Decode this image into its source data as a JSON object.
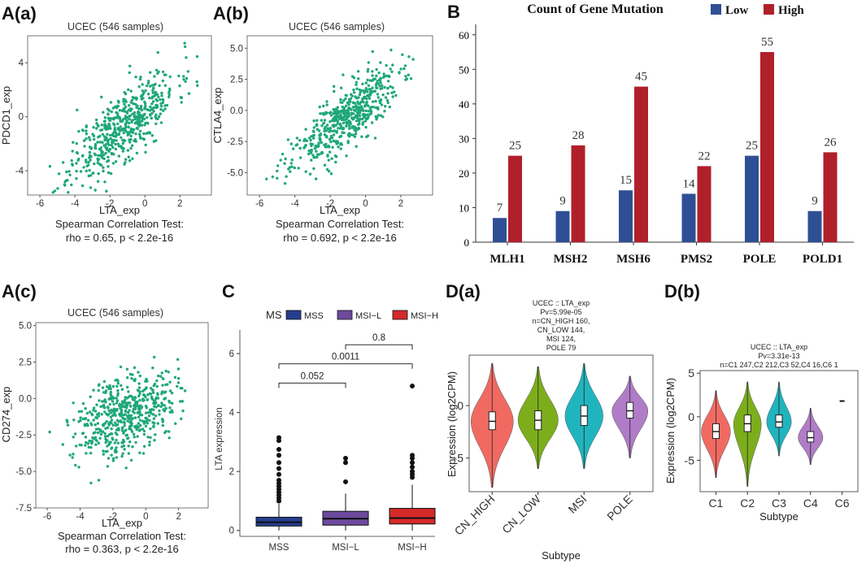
{
  "panels": {
    "a_a": "A(a)",
    "a_b": "A(b)",
    "a_c": "A(c)",
    "b": "B",
    "c": "C",
    "d_a": "D(a)",
    "d_b": "D(b)"
  },
  "chart_data": [
    {
      "id": "A(a)",
      "type": "scatter",
      "title": "UCEC (546 samples)",
      "xlabel": "LTA_exp",
      "ylabel": "PDCD1_exp",
      "xlim": [
        -6.7,
        3.8
      ],
      "ylim": [
        -5.8,
        6.0
      ],
      "xticks": [
        -6,
        -4,
        -2,
        0,
        2
      ],
      "yticks": [
        -4,
        0,
        4
      ],
      "slope": 1.0,
      "intercept": 0.6,
      "noise": 1.3,
      "n_points": 546,
      "stat_line1": "Spearman Correlation Test:",
      "stat_line2": "rho = 0.65, p < 2.2e-16",
      "color": "#1fa77a"
    },
    {
      "id": "A(b)",
      "type": "scatter",
      "title": "UCEC (546 samples)",
      "xlabel": "LTA_exp",
      "ylabel": "CTLA4_exp",
      "xlim": [
        -6.7,
        3.8
      ],
      "ylim": [
        -6.8,
        6.0
      ],
      "xticks": [
        -6,
        -4,
        -2,
        0,
        2
      ],
      "yticks": [
        -5.0,
        -2.5,
        0.0,
        2.5,
        5.0
      ],
      "slope": 1.05,
      "intercept": 0.5,
      "noise": 1.2,
      "n_points": 546,
      "stat_line1": "Spearman Correlation Test:",
      "stat_line2": "rho = 0.692, p < 2.2e-16",
      "color": "#1fa77a"
    },
    {
      "id": "A(c)",
      "type": "scatter",
      "title": "UCEC (546 samples)",
      "xlabel": "LTA_exp",
      "ylabel": "CD274_exp",
      "xlim": [
        -6.7,
        3.8
      ],
      "ylim": [
        -7.5,
        5.2
      ],
      "xticks": [
        -6,
        -4,
        -2,
        0,
        2
      ],
      "yticks": [
        -7.5,
        -5.0,
        -2.5,
        0.0,
        2.5,
        5.0
      ],
      "slope": 0.4,
      "intercept": -0.5,
      "noise": 1.35,
      "n_points": 546,
      "stat_line1": "Spearman Correlation Test:",
      "stat_line2": "rho = 0.363, p < 2.2e-16",
      "color": "#1fa77a"
    },
    {
      "id": "B",
      "type": "bar",
      "title": "Count of Gene Mutation",
      "categories": [
        "MLH1",
        "MSH2",
        "MSH6",
        "PMS2",
        "POLE",
        "POLD1"
      ],
      "series": [
        {
          "name": "Low",
          "values": [
            7,
            9,
            15,
            14,
            25,
            9
          ],
          "color": "#2f4f94"
        },
        {
          "name": "High",
          "values": [
            25,
            28,
            45,
            22,
            55,
            26
          ],
          "color": "#b0202a"
        }
      ],
      "ylim": [
        0,
        63
      ],
      "yticks": [
        0,
        10,
        20,
        30,
        40,
        50,
        60
      ],
      "legend": "top-right"
    },
    {
      "id": "C",
      "type": "box",
      "legend_title": "MS",
      "ylabel": "LTA expression",
      "xlabel": "",
      "categories": [
        "MSS",
        "MSI−L",
        "MSI−H"
      ],
      "colors": [
        "#243e8f",
        "#6d4a9e",
        "#d42a2a"
      ],
      "boxes": [
        {
          "q1": 0.15,
          "median": 0.28,
          "q3": 0.45,
          "whisker_low": 0.0,
          "whisker_high": 0.9,
          "outliers": [
            1.0,
            1.1,
            1.2,
            1.3,
            1.4,
            1.5,
            1.6,
            1.7,
            1.9,
            2.1,
            2.3,
            2.55,
            2.75,
            3.05,
            3.15
          ]
        },
        {
          "q1": 0.18,
          "median": 0.4,
          "q3": 0.65,
          "whisker_low": 0.0,
          "whisker_high": 1.25,
          "outliers": [
            1.65,
            2.3,
            2.45
          ]
        },
        {
          "q1": 0.22,
          "median": 0.42,
          "q3": 0.75,
          "whisker_low": 0.0,
          "whisker_high": 1.55,
          "outliers": [
            1.8,
            1.9,
            2.0,
            2.15,
            2.3,
            2.45,
            2.55,
            4.9
          ]
        }
      ],
      "ylim": [
        -0.2,
        6.8
      ],
      "yticks": [
        0,
        2,
        4,
        6
      ],
      "comparisons": [
        {
          "from": 0,
          "to": 1,
          "y": 5.0,
          "label": "0.052"
        },
        {
          "from": 0,
          "to": 2,
          "y": 5.65,
          "label": "0.0011"
        },
        {
          "from": 1,
          "to": 2,
          "y": 6.3,
          "label": "0.8"
        }
      ]
    },
    {
      "id": "D(a)",
      "type": "violin",
      "annotation": [
        "UCEC :: LTA_exp",
        "Pv=5.99e-05",
        "n=CN_HIGH 160,",
        "CN_LOW 144,",
        "MSI 124,",
        "POLE 79"
      ],
      "xlabel": "Subtype",
      "ylabel": "Expression (log2CPM)",
      "categories": [
        "CN_HIGH",
        "CN_LOW",
        "MSI",
        "POLE"
      ],
      "colors": [
        "#f06a62",
        "#7cae1c",
        "#20b5be",
        "#b07cc7"
      ],
      "violins": [
        {
          "center": -1.5,
          "lo": -7.8,
          "hi": 4.0,
          "width": 1.0,
          "q1": -2.3,
          "q3": -0.6,
          "median": -1.5
        },
        {
          "center": -1.4,
          "lo": -6.0,
          "hi": 3.7,
          "width": 0.95,
          "q1": -2.3,
          "q3": -0.5,
          "median": -1.4
        },
        {
          "center": -1.0,
          "lo": -6.0,
          "hi": 4.0,
          "width": 0.9,
          "q1": -1.9,
          "q3": 0.0,
          "median": -1.0
        },
        {
          "center": -0.5,
          "lo": -5.0,
          "hi": 2.8,
          "width": 0.85,
          "q1": -1.2,
          "q3": 0.3,
          "median": -0.5
        }
      ],
      "ylim": [
        -8.2,
        4.8
      ],
      "yticks": [
        -5,
        0
      ]
    },
    {
      "id": "D(b)",
      "type": "violin",
      "annotation": [
        "UCEC :: LTA_exp",
        "Pv=3.31e-13",
        "n=C1 247,C2 212,C3 52,C4 16,C6 1"
      ],
      "xlabel": "Subtype",
      "ylabel": "Expression (log2CPM)",
      "categories": [
        "C1",
        "C2",
        "C3",
        "C4",
        "C6"
      ],
      "colors": [
        "#f06a62",
        "#7cae1c",
        "#20b5be",
        "#b07cc7",
        "#222222"
      ],
      "violins": [
        {
          "center": -1.7,
          "lo": -7.0,
          "hi": 3.0,
          "width": 1.0,
          "q1": -2.5,
          "q3": -0.8,
          "median": -1.7
        },
        {
          "center": -0.8,
          "lo": -8.0,
          "hi": 4.0,
          "width": 0.95,
          "q1": -1.7,
          "q3": 0.2,
          "median": -0.8
        },
        {
          "center": -0.6,
          "lo": -4.5,
          "hi": 4.0,
          "width": 0.85,
          "q1": -1.2,
          "q3": 0.2,
          "median": -0.6
        },
        {
          "center": -2.4,
          "lo": -5.5,
          "hi": 1.0,
          "width": 0.85,
          "q1": -2.9,
          "q3": -1.7,
          "median": -2.4
        },
        {
          "center": 1.8,
          "lo": 1.8,
          "hi": 1.8,
          "width": 0.0,
          "q1": 1.8,
          "q3": 1.8,
          "median": 1.8
        }
      ],
      "ylim": [
        -8.6,
        5.3
      ],
      "yticks": [
        -5,
        0,
        5
      ]
    }
  ]
}
